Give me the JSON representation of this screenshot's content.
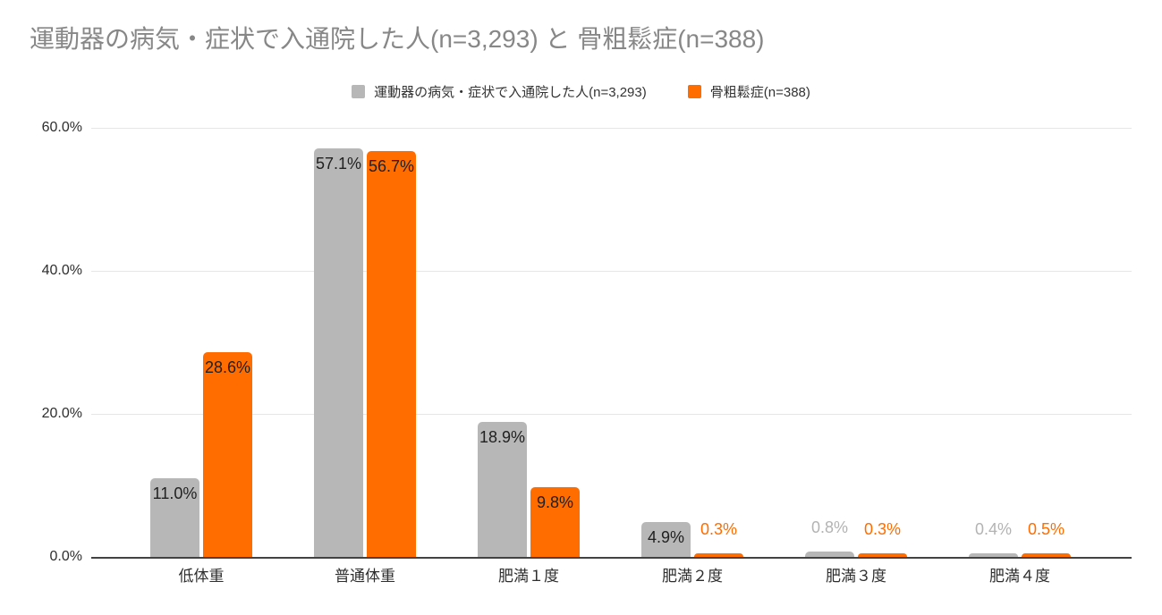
{
  "chart_data": {
    "type": "bar",
    "title": "運動器の病気・症状で入通院した人(n=3,293) と 骨粗鬆症(n=388)",
    "categories": [
      "低体重",
      "普通体重",
      "肥満１度",
      "肥満２度",
      "肥満３度",
      "肥満４度"
    ],
    "series": [
      {
        "name": "運動器の病気・症状で入通院した人(n=3,293)",
        "color": "#b7b7b7",
        "outside_label_color": "#b3b3b3",
        "values": [
          11.0,
          57.1,
          18.9,
          4.9,
          0.8,
          0.4
        ],
        "data_labels": [
          "11.0%",
          "57.1%",
          "18.9%",
          "4.9%",
          "0.8%",
          "0.4%"
        ]
      },
      {
        "name": "骨粗鬆症(n=388)",
        "color": "#ff6d01",
        "outside_label_color": "#ff6d01",
        "values": [
          28.6,
          56.7,
          9.8,
          0.3,
          0.3,
          0.5
        ],
        "data_labels": [
          "28.6%",
          "56.7%",
          "9.8%",
          "0.3%",
          "0.3%",
          "0.5%"
        ]
      }
    ],
    "y_axis": {
      "ticks": [
        "0.0%",
        "20.0%",
        "40.0%",
        "60.0%"
      ],
      "tick_values": [
        0,
        20,
        40,
        60
      ],
      "ylim": [
        0,
        60
      ]
    },
    "grid": true,
    "legend_position": "top",
    "colors": {
      "background": "#ffffff",
      "title_text": "#878787",
      "legend_text": "#333333",
      "axis_text": "#2e2e2e",
      "grid_line": "#e6e6e6",
      "axis_line": "#424242",
      "data_label_inside": "#212121"
    }
  }
}
